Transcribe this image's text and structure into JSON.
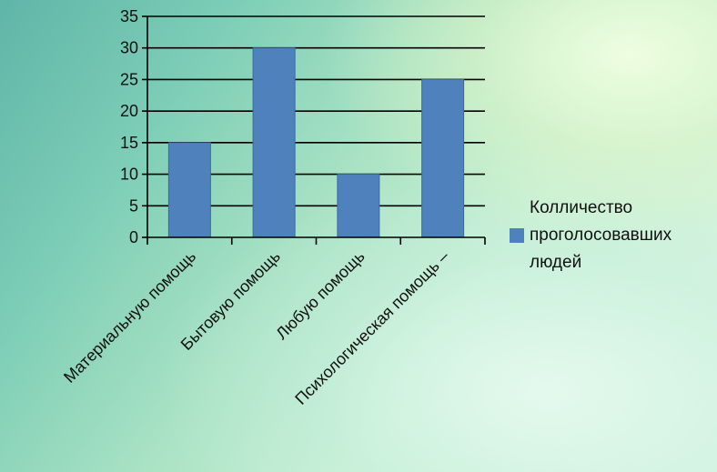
{
  "chart_data": {
    "type": "bar",
    "categories": [
      "Материальную помощь",
      "Бытовую помощь",
      "Любую помощь",
      "Психологическая помощь –"
    ],
    "series": [
      {
        "name": "Колличество проголосовавших людей",
        "values": [
          15,
          30,
          10,
          25
        ],
        "color": "#4f81bd"
      }
    ],
    "ylim": [
      0,
      35
    ],
    "yticks": [
      0,
      5,
      10,
      15,
      20,
      25,
      30,
      35
    ],
    "grid": true,
    "legend": "right"
  },
  "legend": {
    "line1": "Колличество",
    "line2": "проголосовавших",
    "line3": "людей"
  }
}
